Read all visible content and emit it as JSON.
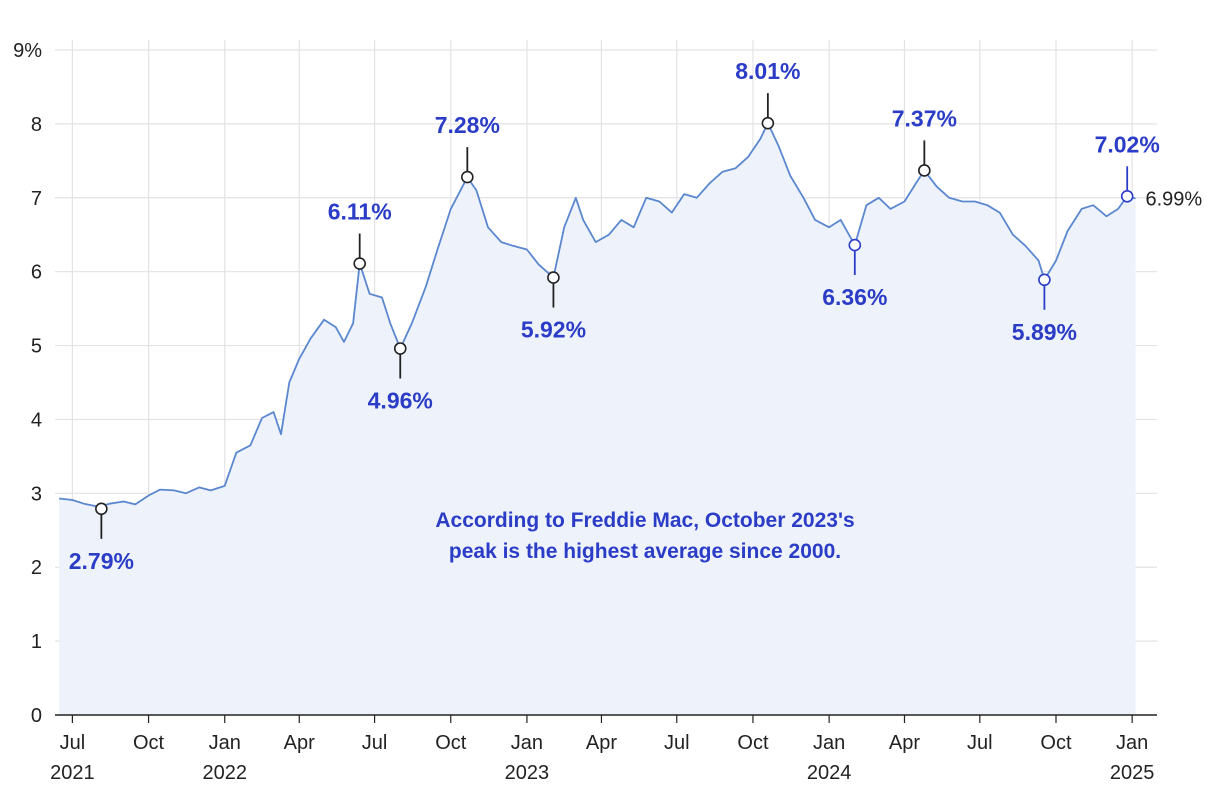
{
  "chart_data": {
    "type": "area",
    "title": "",
    "xlabel": "",
    "ylabel": "",
    "ylim": [
      0,
      9
    ],
    "xlim": [
      "2021-06-10",
      "2025-01-31"
    ],
    "grid": true,
    "y_ticks": [
      {
        "value": 0,
        "label": "0"
      },
      {
        "value": 1,
        "label": "1"
      },
      {
        "value": 2,
        "label": "2"
      },
      {
        "value": 3,
        "label": "3"
      },
      {
        "value": 4,
        "label": "4"
      },
      {
        "value": 5,
        "label": "5"
      },
      {
        "value": 6,
        "label": "6"
      },
      {
        "value": 7,
        "label": "7"
      },
      {
        "value": 8,
        "label": "8"
      },
      {
        "value": 9,
        "label": "9%"
      }
    ],
    "x_ticks": [
      {
        "date": "2021-07-01",
        "label": "Jul",
        "year": "2021"
      },
      {
        "date": "2021-10-01",
        "label": "Oct",
        "year": ""
      },
      {
        "date": "2022-01-01",
        "label": "Jan",
        "year": "2022"
      },
      {
        "date": "2022-04-01",
        "label": "Apr",
        "year": ""
      },
      {
        "date": "2022-07-01",
        "label": "Jul",
        "year": ""
      },
      {
        "date": "2022-10-01",
        "label": "Oct",
        "year": ""
      },
      {
        "date": "2023-01-01",
        "label": "Jan",
        "year": "2023"
      },
      {
        "date": "2023-04-01",
        "label": "Apr",
        "year": ""
      },
      {
        "date": "2023-07-01",
        "label": "Jul",
        "year": ""
      },
      {
        "date": "2023-10-01",
        "label": "Oct",
        "year": ""
      },
      {
        "date": "2024-01-01",
        "label": "Jan",
        "year": "2024"
      },
      {
        "date": "2024-04-01",
        "label": "Apr",
        "year": ""
      },
      {
        "date": "2024-07-01",
        "label": "Jul",
        "year": ""
      },
      {
        "date": "2024-10-01",
        "label": "Oct",
        "year": ""
      },
      {
        "date": "2025-01-01",
        "label": "Jan",
        "year": "2025"
      }
    ],
    "series": [
      {
        "color": "#5b87cf",
        "fill": "#eef3fb",
        "points": [
          [
            "2021-06-15",
            2.93
          ],
          [
            "2021-07-01",
            2.91
          ],
          [
            "2021-07-15",
            2.86
          ],
          [
            "2021-08-01",
            2.82
          ],
          [
            "2021-08-15",
            2.86
          ],
          [
            "2021-09-01",
            2.89
          ],
          [
            "2021-09-15",
            2.85
          ],
          [
            "2021-10-01",
            2.97
          ],
          [
            "2021-10-15",
            3.05
          ],
          [
            "2021-11-01",
            3.04
          ],
          [
            "2021-11-15",
            3.0
          ],
          [
            "2021-12-01",
            3.08
          ],
          [
            "2021-12-15",
            3.04
          ],
          [
            "2022-01-01",
            3.1
          ],
          [
            "2022-01-15",
            3.55
          ],
          [
            "2022-02-01",
            3.65
          ],
          [
            "2022-02-15",
            4.02
          ],
          [
            "2022-03-01",
            4.1
          ],
          [
            "2022-03-10",
            3.8
          ],
          [
            "2022-03-20",
            4.5
          ],
          [
            "2022-04-01",
            4.82
          ],
          [
            "2022-04-15",
            5.1
          ],
          [
            "2022-05-01",
            5.35
          ],
          [
            "2022-05-15",
            5.25
          ],
          [
            "2022-05-25",
            5.05
          ],
          [
            "2022-06-05",
            5.3
          ],
          [
            "2022-06-13",
            6.11
          ],
          [
            "2022-06-25",
            5.7
          ],
          [
            "2022-07-10",
            5.65
          ],
          [
            "2022-07-20",
            5.3
          ],
          [
            "2022-08-01",
            4.96
          ],
          [
            "2022-08-15",
            5.3
          ],
          [
            "2022-09-01",
            5.8
          ],
          [
            "2022-09-15",
            6.3
          ],
          [
            "2022-10-01",
            6.85
          ],
          [
            "2022-10-15",
            7.15
          ],
          [
            "2022-10-21",
            7.28
          ],
          [
            "2022-11-01",
            7.1
          ],
          [
            "2022-11-15",
            6.6
          ],
          [
            "2022-12-01",
            6.4
          ],
          [
            "2022-12-15",
            6.35
          ],
          [
            "2023-01-01",
            6.3
          ],
          [
            "2023-01-15",
            6.1
          ],
          [
            "2023-02-02",
            5.92
          ],
          [
            "2023-02-15",
            6.6
          ],
          [
            "2023-03-01",
            7.0
          ],
          [
            "2023-03-10",
            6.7
          ],
          [
            "2023-03-25",
            6.4
          ],
          [
            "2023-04-10",
            6.5
          ],
          [
            "2023-04-25",
            6.7
          ],
          [
            "2023-05-10",
            6.6
          ],
          [
            "2023-05-25",
            7.0
          ],
          [
            "2023-06-10",
            6.95
          ],
          [
            "2023-06-25",
            6.8
          ],
          [
            "2023-07-10",
            7.05
          ],
          [
            "2023-07-25",
            7.0
          ],
          [
            "2023-08-10",
            7.2
          ],
          [
            "2023-08-25",
            7.35
          ],
          [
            "2023-09-10",
            7.4
          ],
          [
            "2023-09-25",
            7.55
          ],
          [
            "2023-10-10",
            7.8
          ],
          [
            "2023-10-19",
            8.01
          ],
          [
            "2023-11-01",
            7.7
          ],
          [
            "2023-11-15",
            7.3
          ],
          [
            "2023-12-01",
            7.0
          ],
          [
            "2023-12-15",
            6.7
          ],
          [
            "2024-01-01",
            6.6
          ],
          [
            "2024-01-15",
            6.7
          ],
          [
            "2024-02-01",
            6.36
          ],
          [
            "2024-02-15",
            6.9
          ],
          [
            "2024-03-01",
            7.0
          ],
          [
            "2024-03-15",
            6.85
          ],
          [
            "2024-04-01",
            6.95
          ],
          [
            "2024-04-15",
            7.2
          ],
          [
            "2024-04-25",
            7.37
          ],
          [
            "2024-05-10",
            7.15
          ],
          [
            "2024-05-25",
            7.0
          ],
          [
            "2024-06-10",
            6.95
          ],
          [
            "2024-06-25",
            6.95
          ],
          [
            "2024-07-10",
            6.9
          ],
          [
            "2024-07-25",
            6.8
          ],
          [
            "2024-08-10",
            6.5
          ],
          [
            "2024-08-25",
            6.35
          ],
          [
            "2024-09-10",
            6.15
          ],
          [
            "2024-09-17",
            5.89
          ],
          [
            "2024-10-01",
            6.15
          ],
          [
            "2024-10-15",
            6.55
          ],
          [
            "2024-11-01",
            6.85
          ],
          [
            "2024-11-15",
            6.9
          ],
          [
            "2024-12-01",
            6.75
          ],
          [
            "2024-12-15",
            6.85
          ],
          [
            "2024-12-26",
            7.02
          ],
          [
            "2025-01-05",
            6.99
          ]
        ]
      }
    ],
    "annotations": [
      {
        "date": "2021-08-05",
        "value": 2.79,
        "label": "2.79%",
        "position": "below",
        "marker_color": "#222222"
      },
      {
        "date": "2022-06-13",
        "value": 6.11,
        "label": "6.11%",
        "position": "above",
        "marker_color": "#222222"
      },
      {
        "date": "2022-08-01",
        "value": 4.96,
        "label": "4.96%",
        "position": "below",
        "marker_color": "#222222"
      },
      {
        "date": "2022-10-21",
        "value": 7.28,
        "label": "7.28%",
        "position": "above",
        "marker_color": "#222222"
      },
      {
        "date": "2023-02-02",
        "value": 5.92,
        "label": "5.92%",
        "position": "below",
        "marker_color": "#222222"
      },
      {
        "date": "2023-10-19",
        "value": 8.01,
        "label": "8.01%",
        "position": "above",
        "marker_color": "#222222"
      },
      {
        "date": "2024-02-01",
        "value": 6.36,
        "label": "6.36%",
        "position": "below",
        "marker_color": "#2b3cc7"
      },
      {
        "date": "2024-04-25",
        "value": 7.37,
        "label": "7.37%",
        "position": "above",
        "marker_color": "#222222"
      },
      {
        "date": "2024-09-17",
        "value": 5.89,
        "label": "5.89%",
        "position": "below",
        "marker_color": "#2b3cc7"
      },
      {
        "date": "2024-12-26",
        "value": 7.02,
        "label": "7.02%",
        "position": "above",
        "marker_color": "#2b3cc7"
      }
    ],
    "end_label": {
      "date": "2025-01-05",
      "value": 6.99,
      "label": "6.99%"
    },
    "note_lines": [
      "According to Freddie Mac, October 2023's",
      "peak is the highest average since 2000."
    ]
  },
  "colors": {
    "accent": "#2b3cc7",
    "line": "#5b87cf",
    "area": "#eef3fb",
    "grid": "#e3e3e6",
    "axis": "#222222"
  }
}
